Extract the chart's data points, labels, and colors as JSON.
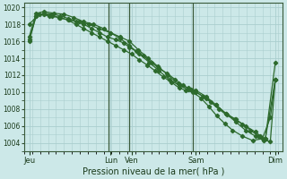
{
  "background_color": "#cce8e8",
  "grid_color": "#aacece",
  "line_color": "#2d6a2d",
  "marker_color": "#2d6a2d",
  "xlabel": "Pression niveau de la mer( hPa )",
  "ylim": [
    1003.0,
    1020.5
  ],
  "yticks": [
    1004,
    1006,
    1008,
    1010,
    1012,
    1014,
    1016,
    1018,
    1020
  ],
  "vline_color": "#3a5a3a",
  "xlim": [
    0,
    260
  ],
  "major_xtick_pos": [
    5,
    87,
    108,
    173,
    253
  ],
  "major_xtick_labels": [
    "Jeu",
    "Lun",
    "Ven",
    "Sam",
    "Dim"
  ],
  "vlines": [
    85,
    106,
    170
  ],
  "series1_x": [
    5,
    15,
    25,
    35,
    45,
    55,
    65,
    75,
    87,
    97,
    106,
    115,
    125,
    135,
    145,
    155,
    165,
    173,
    183,
    193,
    203,
    213,
    223,
    233,
    243,
    253
  ],
  "series1_y": [
    1018.0,
    1019.2,
    1019.0,
    1018.8,
    1018.5,
    1018.3,
    1018.0,
    1017.5,
    1017.0,
    1016.5,
    1016.0,
    1015.0,
    1014.0,
    1013.0,
    1012.0,
    1011.0,
    1010.5,
    1010.2,
    1009.5,
    1008.5,
    1007.5,
    1006.5,
    1005.5,
    1004.8,
    1004.5,
    1013.5
  ],
  "series2_x": [
    5,
    12,
    20,
    30,
    40,
    50,
    60,
    70,
    80,
    87,
    97,
    106,
    116,
    126,
    136,
    146,
    156,
    165,
    173,
    183,
    193,
    203,
    213,
    223,
    233,
    238,
    243,
    253
  ],
  "series2_y": [
    1016.5,
    1019.3,
    1019.5,
    1019.3,
    1019.2,
    1018.8,
    1018.3,
    1018.0,
    1017.5,
    1017.0,
    1016.3,
    1015.5,
    1014.5,
    1013.5,
    1012.5,
    1011.5,
    1010.8,
    1010.3,
    1010.0,
    1009.3,
    1008.5,
    1007.5,
    1006.8,
    1006.0,
    1005.3,
    1004.8,
    1004.5,
    1011.5
  ],
  "series3_x": [
    5,
    12,
    20,
    28,
    36,
    44,
    52,
    60,
    68,
    76,
    84,
    92,
    100,
    108,
    116,
    124,
    132,
    140,
    148,
    156,
    163,
    170,
    178,
    186,
    194,
    202,
    210,
    220,
    230,
    240,
    248,
    253
  ],
  "series3_y": [
    1016.0,
    1019.0,
    1019.2,
    1019.0,
    1018.8,
    1018.5,
    1018.0,
    1017.5,
    1017.0,
    1016.5,
    1016.0,
    1015.5,
    1015.0,
    1014.5,
    1013.8,
    1013.2,
    1012.5,
    1011.8,
    1011.2,
    1010.5,
    1010.2,
    1010.0,
    1009.3,
    1008.3,
    1007.2,
    1006.3,
    1005.5,
    1004.8,
    1004.3,
    1004.5,
    1007.0,
    1011.5
  ],
  "series4_x": [
    5,
    12,
    20,
    28,
    36,
    44,
    52,
    60,
    68,
    76,
    84,
    92,
    100,
    106,
    113,
    120,
    128,
    136,
    144,
    152,
    160,
    168,
    173,
    180,
    188,
    196,
    204,
    212,
    220,
    228,
    236,
    241,
    248,
    253
  ],
  "series4_y": [
    1016.2,
    1019.0,
    1019.3,
    1019.2,
    1019.0,
    1018.7,
    1018.3,
    1018.0,
    1017.5,
    1017.0,
    1016.5,
    1016.2,
    1015.8,
    1015.3,
    1014.8,
    1014.3,
    1013.5,
    1012.8,
    1012.2,
    1011.5,
    1010.8,
    1010.3,
    1010.0,
    1009.5,
    1008.8,
    1008.0,
    1007.3,
    1006.8,
    1006.2,
    1005.5,
    1004.8,
    1004.3,
    1004.2,
    1011.5
  ]
}
